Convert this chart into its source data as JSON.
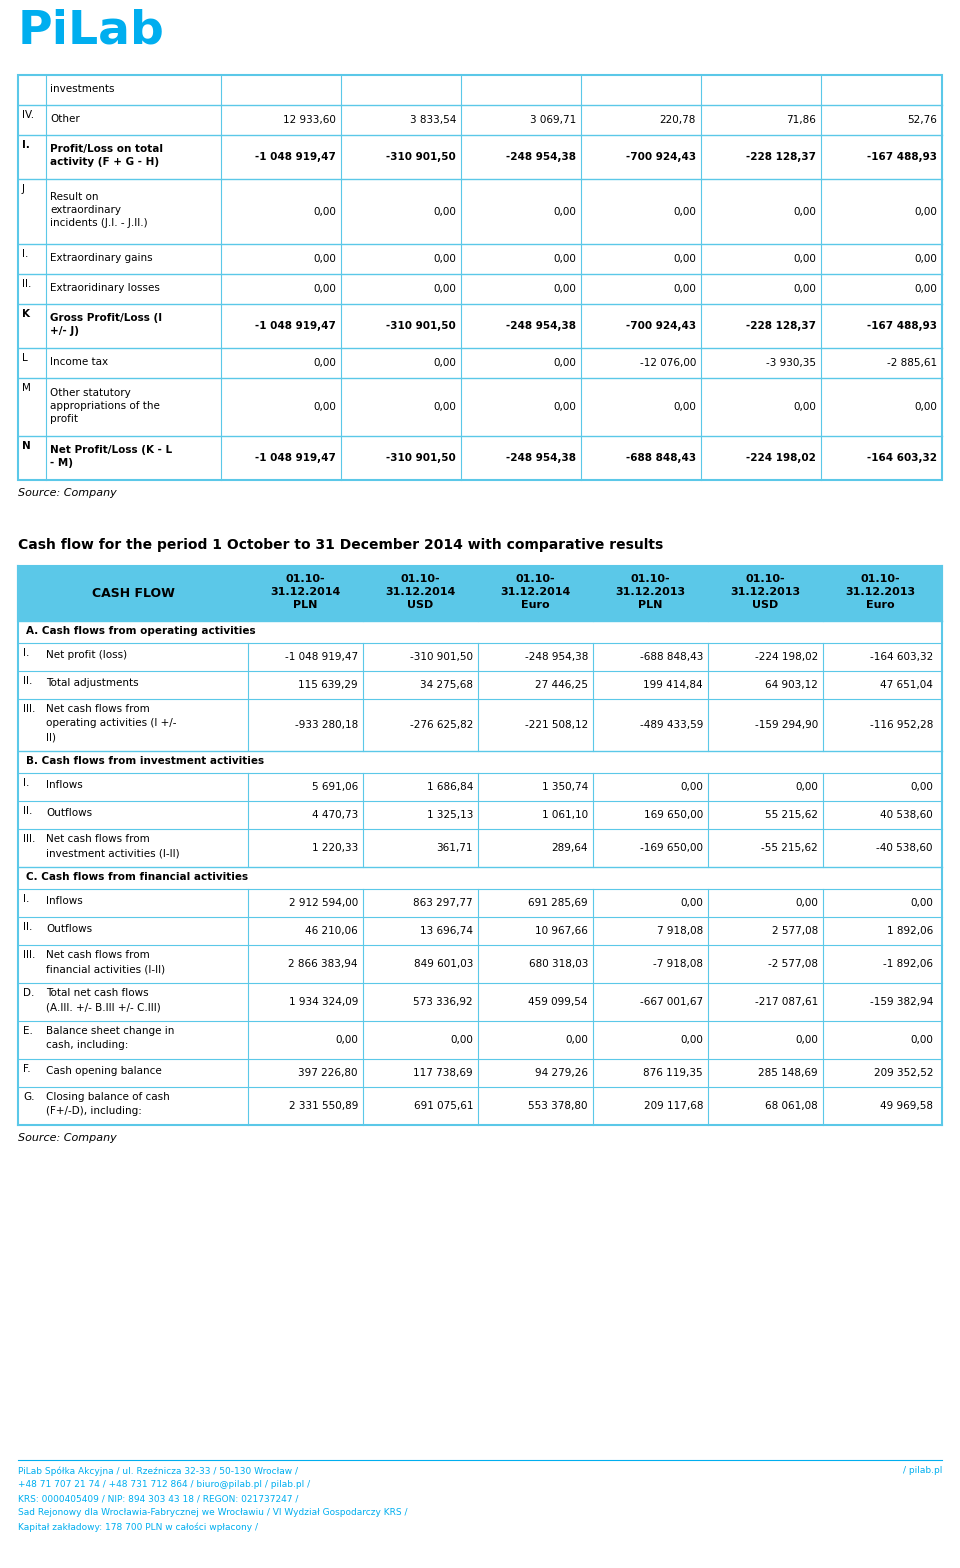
{
  "logo_color": "#00AEEF",
  "background_color": "#FFFFFF",
  "border_color": "#5BC8E8",
  "header_bg": "#5BC8E8",
  "text_color": "#1a1a1a",
  "bold_text_color": "#000000",
  "footer_text_color": "#00AEEF",
  "top_table_rows": [
    {
      "label": "",
      "name": "investments",
      "values": [
        "",
        "",
        "",
        "",
        "",
        ""
      ],
      "bold": false,
      "italic_name": false,
      "is_header_row": false
    },
    {
      "label": "IV.",
      "name": "Other",
      "values": [
        "12 933,60",
        "3 833,54",
        "3 069,71",
        "220,78",
        "71,86",
        "52,76"
      ],
      "bold": false,
      "italic_name": false
    },
    {
      "label": "I.",
      "name": "Profit/Loss on total\nactivity (F + G - H)",
      "values": [
        "-1 048 919,47",
        "-310 901,50",
        "-248 954,38",
        "-700 924,43",
        "-228 128,37",
        "-167 488,93"
      ],
      "bold": true,
      "italic_name": false
    },
    {
      "label": "J",
      "name": "Result on\nextraordinary\nincidents (J.I. - J.II.)",
      "values": [
        "0,00",
        "0,00",
        "0,00",
        "0,00",
        "0,00",
        "0,00"
      ],
      "bold": false,
      "italic_name": false
    },
    {
      "label": "I.",
      "name": "Extraordinary gains",
      "values": [
        "0,00",
        "0,00",
        "0,00",
        "0,00",
        "0,00",
        "0,00"
      ],
      "bold": false,
      "italic_name": false
    },
    {
      "label": "II.",
      "name": "Extraoridinary losses",
      "values": [
        "0,00",
        "0,00",
        "0,00",
        "0,00",
        "0,00",
        "0,00"
      ],
      "bold": false,
      "italic_name": false
    },
    {
      "label": "K",
      "name": "Gross Profit/Loss (I\n+/- J)",
      "values": [
        "-1 048 919,47",
        "-310 901,50",
        "-248 954,38",
        "-700 924,43",
        "-228 128,37",
        "-167 488,93"
      ],
      "bold": true,
      "italic_name": false
    },
    {
      "label": "L",
      "name": "Income tax",
      "values": [
        "0,00",
        "0,00",
        "0,00",
        "-12 076,00",
        "-3 930,35",
        "-2 885,61"
      ],
      "bold": false,
      "italic_name": false
    },
    {
      "label": "M",
      "name": "Other statutory\nappropriations of the\nprofit",
      "values": [
        "0,00",
        "0,00",
        "0,00",
        "0,00",
        "0,00",
        "0,00"
      ],
      "bold": false,
      "italic_name": false
    },
    {
      "label": "N",
      "name": "Net Profit/Loss (K - L\n- M)",
      "values": [
        "-1 048 919,47",
        "-310 901,50",
        "-248 954,38",
        "-688 848,43",
        "-224 198,02",
        "-164 603,32"
      ],
      "bold": true,
      "italic_name": false
    }
  ],
  "section_title": "Cash flow for the period 1 October to 31 December 2014 with comparative results",
  "cf_headers": [
    "CASH FLOW",
    "01.10-\n31.12.2014\nPLN",
    "01.10-\n31.12.2014\nUSD",
    "01.10-\n31.12.2014\nEuro",
    "01.10-\n31.12.2013\nPLN",
    "01.10-\n31.12.2013\nUSD",
    "01.10-\n31.12.2013\nEuro"
  ],
  "cf_rows": [
    {
      "type": "section",
      "text": "A. Cash flows from operating activities"
    },
    {
      "type": "data",
      "label": "I.",
      "name": "Net profit (loss)",
      "values": [
        "-1 048 919,47",
        "-310 901,50",
        "-248 954,38",
        "-688 848,43",
        "-224 198,02",
        "-164 603,32"
      ],
      "bold": false
    },
    {
      "type": "data",
      "label": "II.",
      "name": "Total adjustments",
      "values": [
        "115 639,29",
        "34 275,68",
        "27 446,25",
        "199 414,84",
        "64 903,12",
        "47 651,04"
      ],
      "bold": false
    },
    {
      "type": "data",
      "label": "III.",
      "name": "Net cash flows from\noperating activities (I +/-\nII)",
      "values": [
        "-933 280,18",
        "-276 625,82",
        "-221 508,12",
        "-489 433,59",
        "-159 294,90",
        "-116 952,28"
      ],
      "bold": false
    },
    {
      "type": "section",
      "text": "B. Cash flows from investment activities"
    },
    {
      "type": "data",
      "label": "I.",
      "name": "Inflows",
      "values": [
        "5 691,06",
        "1 686,84",
        "1 350,74",
        "0,00",
        "0,00",
        "0,00"
      ],
      "bold": false
    },
    {
      "type": "data",
      "label": "II.",
      "name": "Outflows",
      "values": [
        "4 470,73",
        "1 325,13",
        "1 061,10",
        "169 650,00",
        "55 215,62",
        "40 538,60"
      ],
      "bold": false
    },
    {
      "type": "data",
      "label": "III.",
      "name": "Net cash flows from\ninvestment activities (I-II)",
      "values": [
        "1 220,33",
        "361,71",
        "289,64",
        "-169 650,00",
        "-55 215,62",
        "-40 538,60"
      ],
      "bold": false
    },
    {
      "type": "section",
      "text": "C. Cash flows from financial activities"
    },
    {
      "type": "data",
      "label": "I.",
      "name": "Inflows",
      "values": [
        "2 912 594,00",
        "863 297,77",
        "691 285,69",
        "0,00",
        "0,00",
        "0,00"
      ],
      "bold": false
    },
    {
      "type": "data",
      "label": "II.",
      "name": "Outflows",
      "values": [
        "46 210,06",
        "13 696,74",
        "10 967,66",
        "7 918,08",
        "2 577,08",
        "1 892,06"
      ],
      "bold": false
    },
    {
      "type": "data",
      "label": "III.",
      "name": "Net cash flows from\nfinancial activities (I-II)",
      "values": [
        "2 866 383,94",
        "849 601,03",
        "680 318,03",
        "-7 918,08",
        "-2 577,08",
        "-1 892,06"
      ],
      "bold": false
    },
    {
      "type": "data",
      "label": "D.",
      "name": "Total net cash flows\n(A.III. +/- B.III +/- C.III)",
      "values": [
        "1 934 324,09",
        "573 336,92",
        "459 099,54",
        "-667 001,67",
        "-217 087,61",
        "-159 382,94"
      ],
      "bold": false
    },
    {
      "type": "data",
      "label": "E.",
      "name": "Balance sheet change in\ncash, including:",
      "values": [
        "0,00",
        "0,00",
        "0,00",
        "0,00",
        "0,00",
        "0,00"
      ],
      "bold": false
    },
    {
      "type": "data",
      "label": "F.",
      "name": "Cash opening balance",
      "values": [
        "397 226,80",
        "117 738,69",
        "94 279,26",
        "876 119,35",
        "285 148,69",
        "209 352,52"
      ],
      "bold": false
    },
    {
      "type": "data",
      "label": "G.",
      "name": "Closing balance of cash\n(F+/-D), including:",
      "values": [
        "2 331 550,89",
        "691 075,61",
        "553 378,80",
        "209 117,68",
        "68 061,08",
        "49 969,58"
      ],
      "bold": false
    }
  ],
  "source_text": "Source: Company",
  "footer_left": "PiLab Spółka Akcyjna / ul. Rzeźnicza 32-33 / 50-130 Wrocław /\n+48 71 707 21 74 / +48 731 712 864 / biuro@pilab.pl / pilab.pl /\nKRS: 0000405409 / NIP: 894 303 43 18 / REGON: 021737247 /\nSad Rejonowy dla Wrocławia-Fabrycznej we Wrocławiu / VI Wydział Gospodarczy KRS /\nKapitał zakładowy: 178 700 PLN w całości wpłacony /",
  "footer_right": "/ pilab.pl"
}
